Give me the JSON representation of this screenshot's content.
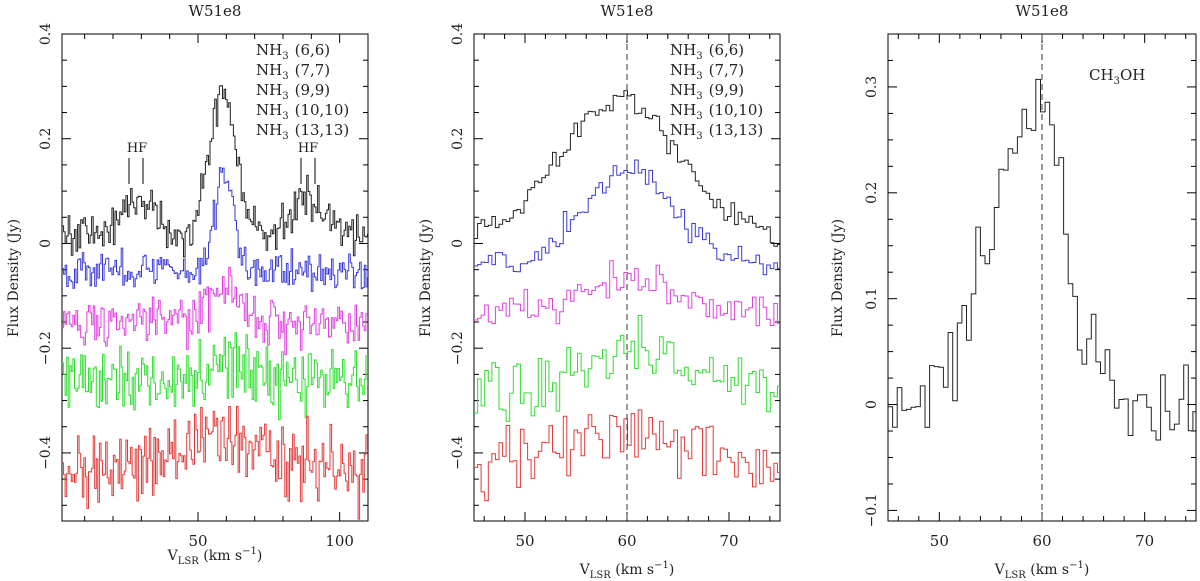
{
  "figure": {
    "panels": [
      {
        "title": "W51e8",
        "xlabel": {
          "main": "V",
          "sub": "LSR",
          "unit": " (km s",
          "exp": "−1",
          "close": ")"
        },
        "ylabel": "Flux Density (Jy)",
        "xlim": [
          2,
          110
        ],
        "ylim": [
          -0.53,
          0.4
        ],
        "xticks_major": [
          50,
          100
        ],
        "xtick_labels": [
          "50",
          "100"
        ],
        "yticks_major": [
          -0.4,
          -0.2,
          0,
          0.2,
          0.4
        ],
        "ytick_labels": [
          "−0.4",
          "−0.2",
          "0",
          "0.2",
          "0.4"
        ],
        "legend": [
          {
            "species": "NH",
            "sub": "3",
            "transition": "(6,6)",
            "color": "#222222"
          },
          {
            "species": "NH",
            "sub": "3",
            "transition": "(7,7)",
            "color": "#3a3ad8"
          },
          {
            "species": "NH",
            "sub": "3",
            "transition": "(9,9)",
            "color": "#e040e0"
          },
          {
            "species": "NH",
            "sub": "3",
            "transition": "(10,10)",
            "color": "#30dd30"
          },
          {
            "species": "NH",
            "sub": "3",
            "transition": "(13,13)",
            "color": "#e03a3a"
          }
        ],
        "annotations": [
          {
            "text": "HF",
            "x": 29,
            "y": 0.195
          },
          {
            "text": "HF",
            "x": 89,
            "y": 0.195
          }
        ]
      },
      {
        "title": "W51e8",
        "xlabel": {
          "main": "V",
          "sub": "LSR",
          "unit": " (km s",
          "exp": "−1",
          "close": ")"
        },
        "ylabel": "Flux Density (Jy)",
        "xlim": [
          45,
          75
        ],
        "ylim": [
          -0.53,
          0.4
        ],
        "xticks_major": [
          50,
          60,
          70
        ],
        "xtick_labels": [
          "50",
          "60",
          "70"
        ],
        "yticks_major": [
          -0.4,
          -0.2,
          0,
          0.2,
          0.4
        ],
        "ytick_labels": [
          "−0.4",
          "−0.2",
          "0",
          "0.2",
          "0.4"
        ],
        "vline": 60,
        "legend": [
          {
            "species": "NH",
            "sub": "3",
            "transition": "(6,6)",
            "color": "#222222"
          },
          {
            "species": "NH",
            "sub": "3",
            "transition": "(7,7)",
            "color": "#3a3ad8"
          },
          {
            "species": "NH",
            "sub": "3",
            "transition": "(9,9)",
            "color": "#e040e0"
          },
          {
            "species": "NH",
            "sub": "3",
            "transition": "(10,10)",
            "color": "#30dd30"
          },
          {
            "species": "NH",
            "sub": "3",
            "transition": "(13,13)",
            "color": "#e03a3a"
          }
        ]
      },
      {
        "title": "W51e8",
        "xlabel": {
          "main": "V",
          "sub": "LSR",
          "unit": " (km s",
          "exp": "−1",
          "close": ")"
        },
        "ylabel": "Flux Density (Jy)",
        "xlim": [
          45,
          75
        ],
        "ylim": [
          -0.11,
          0.35
        ],
        "xticks_major": [
          50,
          60,
          70
        ],
        "xtick_labels": [
          "50",
          "60",
          "70"
        ],
        "yticks_major": [
          -0.1,
          0,
          0.1,
          0.2,
          0.3
        ],
        "ytick_labels": [
          "−0.1",
          "0",
          "0.1",
          "0.2",
          "0.3"
        ],
        "vline": 60,
        "species_label": {
          "main": "CH",
          "sub": "3",
          "rest": "OH"
        }
      }
    ]
  },
  "chart_data": [
    {
      "type": "line",
      "step": true,
      "title": "W51e8",
      "xlabel": "VLSR (km s−1)",
      "ylabel": "Flux Density (Jy)",
      "xlim": [
        2,
        110
      ],
      "ylim": [
        -0.53,
        0.4
      ],
      "series": [
        {
          "name": "NH3 (6,6)",
          "color": "#222222",
          "offset": 0.02,
          "noise": 0.02,
          "components": [
            [
              58.5,
              0.27,
              4.5
            ],
            [
              29,
              0.07,
              5
            ],
            [
              89,
              0.07,
              5
            ]
          ]
        },
        {
          "name": "NH3 (7,7)",
          "color": "#3a3ad8",
          "offset": -0.05,
          "noise": 0.018,
          "components": [
            [
              59,
              0.19,
              3.2
            ]
          ]
        },
        {
          "name": "NH3 (9,9)",
          "color": "#e040e0",
          "offset": -0.15,
          "noise": 0.022,
          "components": [
            [
              59,
              0.06,
              5
            ]
          ]
        },
        {
          "name": "NH3 (10,10)",
          "color": "#30dd30",
          "offset": -0.26,
          "noise": 0.035,
          "components": [
            [
              59,
              0.04,
              6
            ]
          ]
        },
        {
          "name": "NH3 (13,13)",
          "color": "#e03a3a",
          "offset": -0.43,
          "noise": 0.035,
          "components": [
            [
              58,
              0.06,
              12
            ]
          ]
        }
      ]
    },
    {
      "type": "line",
      "step": true,
      "title": "W51e8",
      "xlabel": "VLSR (km s−1)",
      "ylabel": "Flux Density (Jy)",
      "xlim": [
        45,
        75
      ],
      "ylim": [
        -0.53,
        0.4
      ],
      "reference_velocity": 60,
      "series": [
        {
          "name": "NH3 (6,6)",
          "color": "#222222",
          "offset": 0.02,
          "noise": 0.012,
          "components": [
            [
              59,
              0.26,
              5.5
            ]
          ]
        },
        {
          "name": "NH3 (7,7)",
          "color": "#3a3ad8",
          "offset": -0.04,
          "noise": 0.012,
          "components": [
            [
              60,
              0.18,
              4.5
            ]
          ]
        },
        {
          "name": "NH3 (9,9)",
          "color": "#e040e0",
          "offset": -0.13,
          "noise": 0.018,
          "components": [
            [
              60,
              0.06,
              4
            ]
          ]
        },
        {
          "name": "NH3 (10,10)",
          "color": "#30dd30",
          "offset": -0.28,
          "noise": 0.03,
          "components": [
            [
              60,
              0.08,
              5
            ]
          ]
        },
        {
          "name": "NH3 (13,13)",
          "color": "#e03a3a",
          "offset": -0.43,
          "noise": 0.03,
          "components": [
            [
              59,
              0.08,
              6
            ]
          ]
        }
      ]
    },
    {
      "type": "line",
      "step": true,
      "title": "W51e8",
      "xlabel": "VLSR (km s−1)",
      "ylabel": "Flux Density (Jy)",
      "xlim": [
        45,
        75
      ],
      "ylim": [
        -0.11,
        0.35
      ],
      "reference_velocity": 60,
      "series": [
        {
          "name": "CH3OH",
          "color": "#222222",
          "offset": 0.0,
          "noise": 0.02,
          "components": [
            [
              57.5,
              0.23,
              3.5
            ],
            [
              60.5,
              0.12,
              1.5
            ]
          ]
        }
      ]
    }
  ]
}
